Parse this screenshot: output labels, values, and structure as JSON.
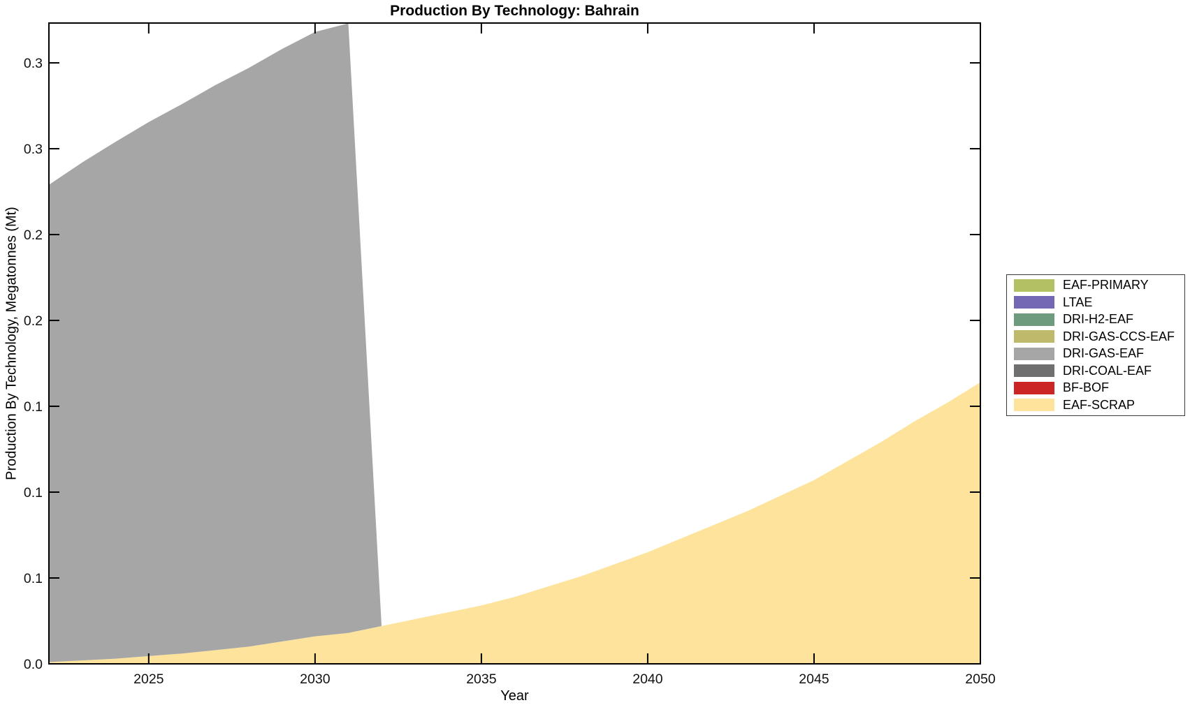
{
  "figure": {
    "title": "Production By Technology: Bahrain",
    "xlabel": "Year",
    "ylabel": "Production By Technology, Megatonnes (Mt)",
    "background": "#ffffff",
    "axis_color": "#000000"
  },
  "chart_data": {
    "type": "area",
    "stacked": true,
    "grid": false,
    "legend_position": "right-outside",
    "title": "Production By Technology: Bahrain",
    "xlabel": "Year",
    "ylabel": "Production By Technology, Megatonnes (Mt)",
    "x_range": [
      2022,
      2050
    ],
    "y_range": [
      0,
      0.3732
    ],
    "x_ticks": [
      {
        "v": 2025,
        "label": "2025"
      },
      {
        "v": 2030,
        "label": "2030"
      },
      {
        "v": 2035,
        "label": "2035"
      },
      {
        "v": 2040,
        "label": "2040"
      },
      {
        "v": 2045,
        "label": "2045"
      },
      {
        "v": 2050,
        "label": "2050"
      }
    ],
    "y_ticks": [
      {
        "v": 0.0,
        "label": "0.0"
      },
      {
        "v": 0.05,
        "label": "0.1"
      },
      {
        "v": 0.1,
        "label": "0.1"
      },
      {
        "v": 0.15,
        "label": "0.1"
      },
      {
        "v": 0.2,
        "label": "0.2"
      },
      {
        "v": 0.25,
        "label": "0.2"
      },
      {
        "v": 0.3,
        "label": "0.3"
      },
      {
        "v": 0.35,
        "label": "0.3"
      }
    ],
    "years": [
      2022,
      2023,
      2024,
      2025,
      2026,
      2027,
      2028,
      2029,
      2030,
      2031,
      2032,
      2033,
      2034,
      2035,
      2036,
      2037,
      2038,
      2039,
      2040,
      2041,
      2042,
      2043,
      2044,
      2045,
      2046,
      2047,
      2048,
      2049,
      2050
    ],
    "series": [
      {
        "name": "EAF-PRIMARY",
        "color": "#b4c064",
        "values": [
          0,
          0,
          0,
          0,
          0,
          0,
          0,
          0,
          0,
          0,
          0,
          0,
          0,
          0,
          0,
          0,
          0,
          0,
          0,
          0,
          0,
          0,
          0,
          0,
          0,
          0,
          0,
          0,
          0
        ]
      },
      {
        "name": "LTAE",
        "color": "#7468b4",
        "values": [
          0,
          0,
          0,
          0,
          0,
          0,
          0,
          0,
          0,
          0,
          0,
          0,
          0,
          0,
          0,
          0,
          0,
          0,
          0,
          0,
          0,
          0,
          0,
          0,
          0,
          0,
          0,
          0,
          0
        ]
      },
      {
        "name": "DRI-H2-EAF",
        "color": "#6e9a7e",
        "values": [
          0,
          0,
          0,
          0,
          0,
          0,
          0,
          0,
          0,
          0,
          0,
          0,
          0,
          0,
          0,
          0,
          0,
          0,
          0,
          0,
          0,
          0,
          0,
          0,
          0,
          0,
          0,
          0,
          0
        ]
      },
      {
        "name": "DRI-GAS-CCS-EAF",
        "color": "#bfb96b",
        "values": [
          0,
          0,
          0,
          0,
          0,
          0,
          0,
          0,
          0,
          0,
          0,
          0,
          0,
          0,
          0,
          0,
          0,
          0,
          0,
          0,
          0,
          0,
          0,
          0,
          0,
          0,
          0,
          0,
          0
        ]
      },
      {
        "name": "DRI-GAS-EAF",
        "color": "#a6a6a6",
        "values": [
          0.278,
          0.29,
          0.301,
          0.311,
          0.32,
          0.329,
          0.337,
          0.345,
          0.352,
          0.355,
          0,
          0,
          0,
          0,
          0,
          0,
          0,
          0,
          0,
          0,
          0,
          0,
          0,
          0,
          0,
          0,
          0,
          0,
          0
        ]
      },
      {
        "name": "DRI-COAL-EAF",
        "color": "#6f6f6f",
        "values": [
          0,
          0,
          0,
          0,
          0,
          0,
          0,
          0,
          0,
          0,
          0,
          0,
          0,
          0,
          0,
          0,
          0,
          0,
          0,
          0,
          0,
          0,
          0,
          0,
          0,
          0,
          0,
          0,
          0
        ]
      },
      {
        "name": "BF-BOF",
        "color": "#cc2526",
        "values": [
          0,
          0,
          0,
          0,
          0,
          0,
          0,
          0,
          0,
          0,
          0,
          0,
          0,
          0,
          0,
          0,
          0,
          0,
          0,
          0,
          0,
          0,
          0,
          0,
          0,
          0,
          0,
          0,
          0
        ]
      },
      {
        "name": "EAF-SCRAP",
        "color": "#fde39b",
        "values": [
          0.001,
          0.002,
          0.003,
          0.0045,
          0.006,
          0.008,
          0.01,
          0.013,
          0.016,
          0.018,
          0.022,
          0.026,
          0.03,
          0.034,
          0.039,
          0.045,
          0.051,
          0.058,
          0.065,
          0.073,
          0.081,
          0.089,
          0.098,
          0.107,
          0.118,
          0.129,
          0.141,
          0.152,
          0.164
        ]
      }
    ]
  }
}
